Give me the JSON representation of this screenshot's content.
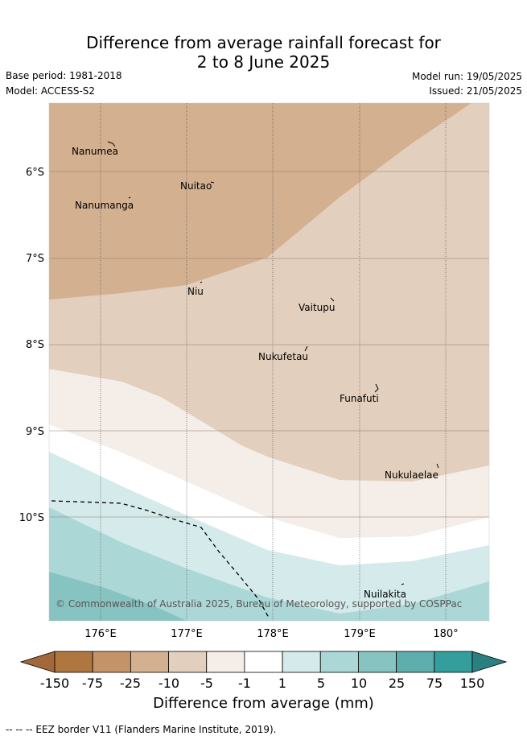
{
  "title_line1": "Difference from average rainfall forecast for",
  "title_line2": "2 to 8 June 2025",
  "base_period": "Base period: 1981-2018",
  "model": "Model: ACCESS-S2",
  "model_run": "Model run: 19/05/2025",
  "issued": "Issued: 21/05/2025",
  "copyright": "© Commonwealth of Australia 2025, Bureau of Meteorology, supported by COSPPac",
  "lon_ticks": [
    "176°E",
    "177°E",
    "178°E",
    "179°E",
    "180°"
  ],
  "lat_ticks": [
    "6°S",
    "7°S",
    "8°S",
    "9°S",
    "10°S"
  ],
  "places": [
    "Nanumea",
    "Nuitao",
    "Nanumanga",
    "Niu",
    "Vaitupu",
    "Nukufetau",
    "Funafuti",
    "Nukulaelae",
    "Nuilakita"
  ],
  "colorbar": {
    "labels": [
      "-150",
      "-75",
      "-25",
      "-10",
      "-5",
      "-1",
      "1",
      "5",
      "10",
      "25",
      "75",
      "150"
    ],
    "colors": [
      "#a2683a",
      "#b0763f",
      "#c49468",
      "#d3b08f",
      "#e2cfbd",
      "#f4ede8",
      "#ffffff",
      "#d5eaea",
      "#abd8d7",
      "#87c3c1",
      "#5daead",
      "#349e9d",
      "#2a8081"
    ]
  },
  "colorbar_title": "Difference from average (mm)",
  "footnote": "-- -- -- EEZ border V11 (Flanders Marine Institute, 2019)."
}
